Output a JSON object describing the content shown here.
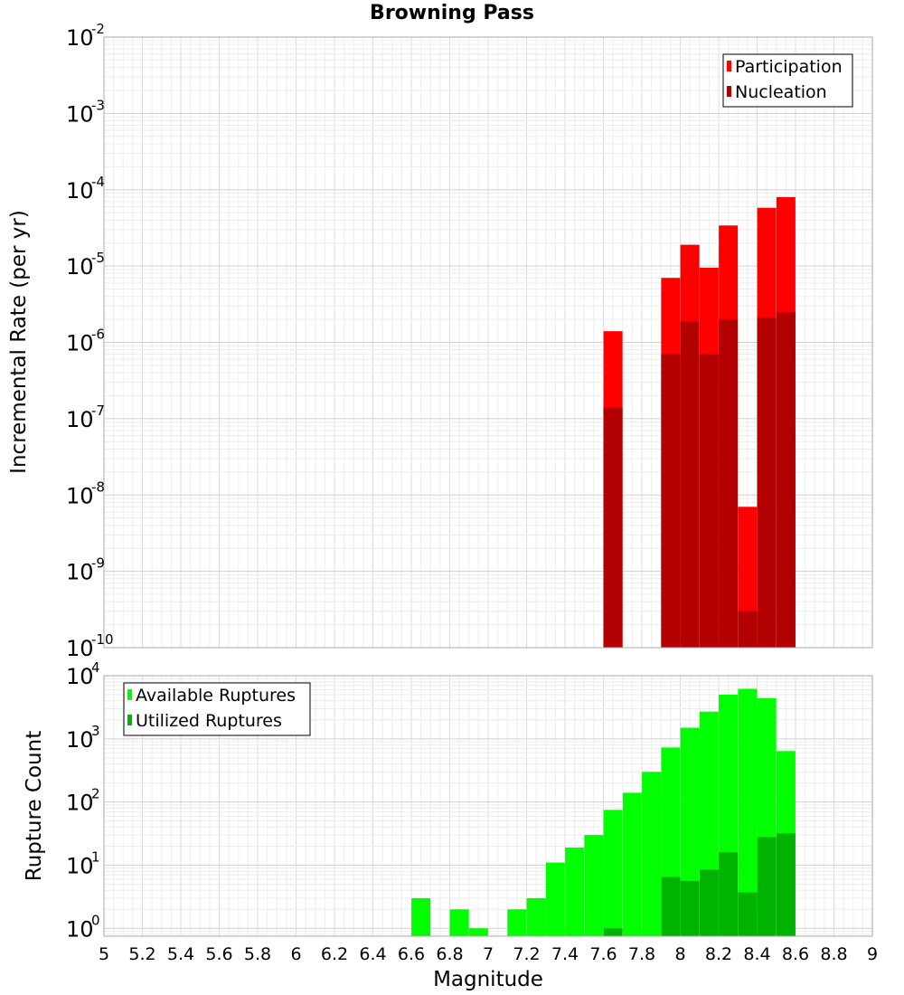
{
  "title": "Browning Pass",
  "chart_data": [
    {
      "type": "bar",
      "scale": "log",
      "ylabel": "Incremental Rate (per yr)",
      "xlabel": "",
      "ylim": [
        1e-10,
        0.01
      ],
      "xlim": [
        5,
        9
      ],
      "y_tick_exponents": [
        "-2",
        "-3",
        "-4",
        "-5",
        "-6",
        "-7",
        "-8",
        "-9",
        "-10"
      ],
      "legend": [
        {
          "label": "Participation",
          "color": "#ff0000"
        },
        {
          "label": "Nucleation",
          "color": "#b30000"
        }
      ],
      "x": [
        7.65,
        7.95,
        8.05,
        8.15,
        8.25,
        8.35,
        8.45,
        8.55
      ],
      "series": [
        {
          "name": "Participation",
          "color": "#ff0000",
          "values": [
            1.4e-06,
            7e-06,
            1.9e-05,
            9.5e-06,
            3.4e-05,
            7e-09,
            5.8e-05,
            8e-05
          ]
        },
        {
          "name": "Nucleation",
          "color": "#b30000",
          "values": [
            1.4e-07,
            7e-07,
            1.9e-06,
            7e-07,
            2e-06,
            3e-10,
            2.1e-06,
            2.5e-06
          ]
        }
      ]
    },
    {
      "type": "bar",
      "scale": "log",
      "ylabel": "Rupture Count",
      "xlabel": "Magnitude",
      "ylim": [
        0.75,
        10000
      ],
      "xlim": [
        5,
        9
      ],
      "y_tick_exponents": [
        "4",
        "3",
        "2",
        "1",
        "0"
      ],
      "x_ticks": [
        "5",
        "5.2",
        "5.4",
        "5.6",
        "5.8",
        "6",
        "6.2",
        "6.4",
        "6.6",
        "6.8",
        "7",
        "7.2",
        "7.4",
        "7.6",
        "7.8",
        "8",
        "8.2",
        "8.4",
        "8.6",
        "8.8",
        "9"
      ],
      "legend": [
        {
          "label": "Available Ruptures",
          "color": "#00ff00"
        },
        {
          "label": "Utilized Ruptures",
          "color": "#00b300"
        }
      ],
      "x": [
        6.65,
        6.85,
        6.95,
        7.15,
        7.25,
        7.35,
        7.45,
        7.55,
        7.65,
        7.75,
        7.85,
        7.95,
        8.05,
        8.15,
        8.25,
        8.35,
        8.45,
        8.55
      ],
      "series": [
        {
          "name": "Available Ruptures",
          "color": "#00ff00",
          "values": [
            3,
            2,
            1,
            2,
            3,
            11,
            19,
            30,
            75,
            140,
            300,
            730,
            1500,
            2700,
            5000,
            6200,
            4400,
            640
          ]
        },
        {
          "name": "Utilized Ruptures",
          "color": "#00b300",
          "values": [
            0,
            0,
            0,
            0,
            0,
            0,
            0,
            0,
            1,
            0,
            0,
            6.5,
            5.6,
            8.5,
            16,
            3.7,
            28,
            32
          ]
        }
      ]
    }
  ]
}
